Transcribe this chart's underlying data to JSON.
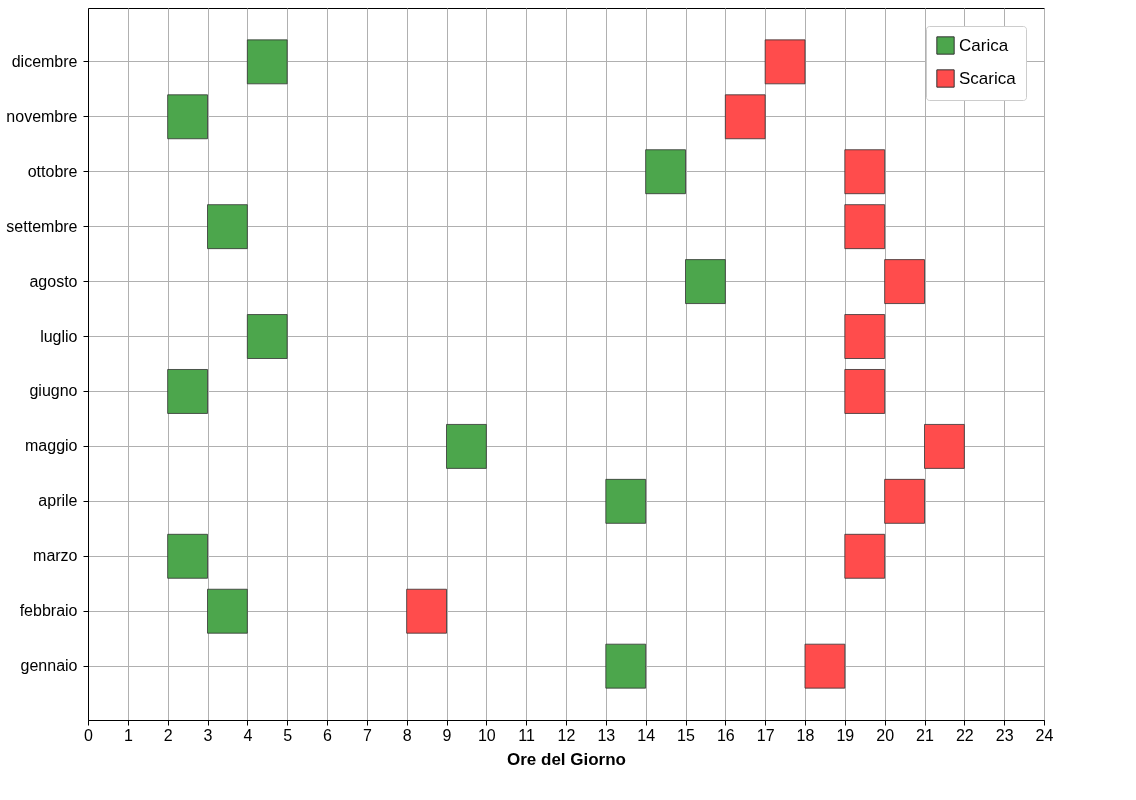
{
  "chart_data": {
    "type": "bar",
    "orientation": "horizontal",
    "xlabel": "Ore del Giorno",
    "categories": [
      "dicembre",
      "novembre",
      "ottobre",
      "settembre",
      "agosto",
      "luglio",
      "giugno",
      "maggio",
      "aprile",
      "marzo",
      "febbraio",
      "gennaio"
    ],
    "series": [
      {
        "name": "Carica",
        "color": "#4ca64c",
        "base": [
          4,
          2,
          14,
          3,
          15,
          4,
          2,
          9,
          13,
          2,
          3,
          13
        ],
        "values": [
          1,
          1,
          1,
          1,
          1,
          1,
          1,
          1,
          1,
          1,
          1,
          1
        ]
      },
      {
        "name": "Scarica",
        "color": "#ff4c4c",
        "base": [
          17,
          16,
          19,
          19,
          20,
          19,
          19,
          21,
          20,
          19,
          8,
          18
        ],
        "values": [
          1,
          1,
          1,
          1,
          1,
          1,
          1,
          1,
          1,
          1,
          1,
          1
        ]
      }
    ],
    "xlim": [
      0,
      24
    ],
    "xticks": [
      0,
      1,
      2,
      3,
      4,
      5,
      6,
      7,
      8,
      9,
      10,
      11,
      12,
      13,
      14,
      15,
      16,
      17,
      18,
      19,
      20,
      21,
      22,
      23,
      24
    ],
    "grid": true,
    "legend": "top right"
  }
}
